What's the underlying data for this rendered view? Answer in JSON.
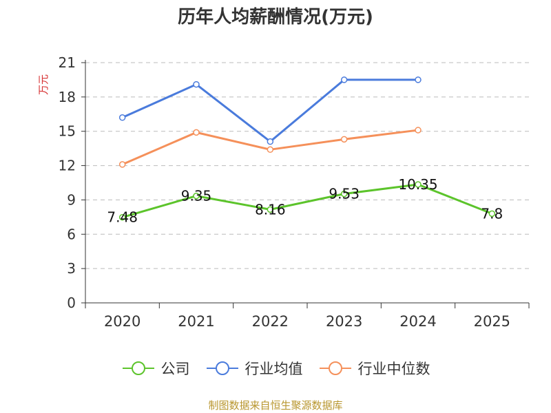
{
  "title": "历年人均薪酬情况(万元)",
  "source": "制图数据来自恒生聚源数据库",
  "colors": {
    "company": "#5cc42b",
    "industry_avg": "#4a7bdc",
    "industry_median": "#f5905a",
    "ylabel": "#d63031",
    "grid": "#bbbbbb",
    "axis": "#333333"
  },
  "chart_data": {
    "type": "line",
    "title": "历年人均薪酬情况(万元)",
    "xlabel": "",
    "ylabel": "万元",
    "categories": [
      "2020",
      "2021",
      "2022",
      "2023",
      "2024",
      "2025"
    ],
    "ylim": [
      0,
      21
    ],
    "yticks": [
      "0",
      "3",
      "6",
      "9",
      "12",
      "15",
      "18",
      "21"
    ],
    "grid": true,
    "legend_position": "bottom",
    "series": [
      {
        "key": "company",
        "name": "公司",
        "values": [
          7.48,
          9.35,
          8.16,
          9.53,
          10.35,
          7.8
        ],
        "labels": [
          "7.48",
          "9.35",
          "8.16",
          "9.53",
          "10.35",
          "7.8"
        ]
      },
      {
        "key": "industry_avg",
        "name": "行业均值",
        "values": [
          16.2,
          19.1,
          14.1,
          19.5,
          19.5,
          null
        ]
      },
      {
        "key": "industry_median",
        "name": "行业中位数",
        "values": [
          12.1,
          14.9,
          13.4,
          14.3,
          15.1,
          null
        ]
      }
    ]
  }
}
